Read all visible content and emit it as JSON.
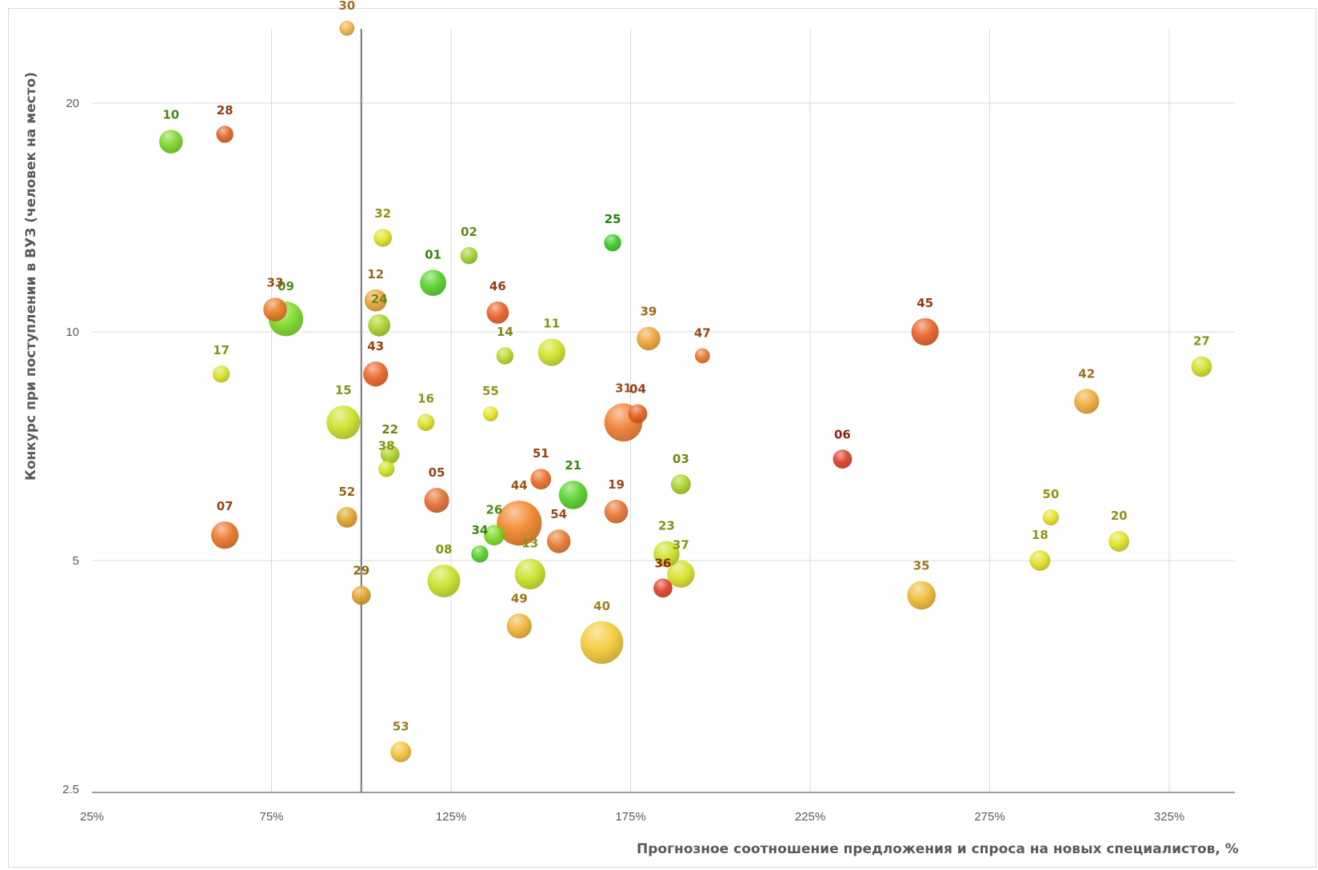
{
  "chart_data": {
    "type": "scatter",
    "xlabel": "Прогнозное соотношение предложения и спроса на новых специалистов, %",
    "ylabel": "Конкурс при поступлении в ВУЗ (человек на место)",
    "xlim": [
      25,
      350
    ],
    "ylim": [
      2.5,
      26
    ],
    "y_scale": "log",
    "grid": true,
    "x_ticks": [
      "25%",
      "75%",
      "125%",
      "175%",
      "225%",
      "275%",
      "325%"
    ],
    "x_tick_values": [
      25,
      75,
      125,
      175,
      225,
      275,
      325
    ],
    "y_ticks": [
      "2.5",
      "5",
      "10",
      "20"
    ],
    "y_tick_values": [
      2.5,
      5,
      10,
      20
    ],
    "reference_line_x": 100,
    "points": [
      {
        "label": "01",
        "x": 120,
        "y": 11.6,
        "size": 1.0,
        "color": "#4fd020"
      },
      {
        "label": "02",
        "x": 130,
        "y": 12.6,
        "size": 0.4,
        "color": "#9cd020"
      },
      {
        "label": "03",
        "x": 189,
        "y": 6.3,
        "size": 0.55,
        "color": "#a8d020"
      },
      {
        "label": "04",
        "x": 177,
        "y": 7.8,
        "size": 0.5,
        "color": "#e06020"
      },
      {
        "label": "05",
        "x": 121,
        "y": 6.0,
        "size": 0.9,
        "color": "#e36a2a"
      },
      {
        "label": "06",
        "x": 234,
        "y": 6.8,
        "size": 0.5,
        "color": "#d83a20"
      },
      {
        "label": "07",
        "x": 62,
        "y": 5.4,
        "size": 1.1,
        "color": "#ea7020"
      },
      {
        "label": "08",
        "x": 123,
        "y": 4.7,
        "size": 1.6,
        "color": "#c8e020"
      },
      {
        "label": "09",
        "x": 79,
        "y": 10.4,
        "size": 1.8,
        "color": "#7ad820"
      },
      {
        "label": "10",
        "x": 47,
        "y": 17.8,
        "size": 0.8,
        "color": "#74d420"
      },
      {
        "label": "11",
        "x": 153,
        "y": 9.4,
        "size": 1.1,
        "color": "#d0e020"
      },
      {
        "label": "12",
        "x": 104,
        "y": 11.0,
        "size": 0.7,
        "color": "#e8a030"
      },
      {
        "label": "13",
        "x": 147,
        "y": 4.8,
        "size": 1.4,
        "color": "#c8e020"
      },
      {
        "label": "14",
        "x": 140,
        "y": 9.3,
        "size": 0.4,
        "color": "#b8d820"
      },
      {
        "label": "15",
        "x": 95,
        "y": 7.6,
        "size": 1.7,
        "color": "#cce020"
      },
      {
        "label": "16",
        "x": 118,
        "y": 7.6,
        "size": 0.4,
        "color": "#d8e020"
      },
      {
        "label": "17",
        "x": 61,
        "y": 8.8,
        "size": 0.4,
        "color": "#d8e020"
      },
      {
        "label": "18",
        "x": 289,
        "y": 5.0,
        "size": 0.6,
        "color": "#e0e020"
      },
      {
        "label": "19",
        "x": 171,
        "y": 5.8,
        "size": 0.8,
        "color": "#e86e2a"
      },
      {
        "label": "20",
        "x": 311,
        "y": 5.3,
        "size": 0.6,
        "color": "#e0e020"
      },
      {
        "label": "21",
        "x": 159,
        "y": 6.1,
        "size": 1.2,
        "color": "#4fd020"
      },
      {
        "label": "22",
        "x": 108,
        "y": 6.9,
        "size": 0.5,
        "color": "#a8d020"
      },
      {
        "label": "23",
        "x": 185,
        "y": 5.1,
        "size": 1.0,
        "color": "#c8e020"
      },
      {
        "label": "24",
        "x": 105,
        "y": 10.2,
        "size": 0.7,
        "color": "#a8d020"
      },
      {
        "label": "25",
        "x": 170,
        "y": 13.1,
        "size": 0.4,
        "color": "#30c820"
      },
      {
        "label": "26",
        "x": 137,
        "y": 5.4,
        "size": 0.6,
        "color": "#7ad820"
      },
      {
        "label": "27",
        "x": 334,
        "y": 9.0,
        "size": 0.6,
        "color": "#d0e020"
      },
      {
        "label": "28",
        "x": 62,
        "y": 18.2,
        "size": 0.4,
        "color": "#e06020"
      },
      {
        "label": "29",
        "x": 100,
        "y": 4.5,
        "size": 0.5,
        "color": "#e0a020"
      },
      {
        "label": "30",
        "x": 96,
        "y": 25.1,
        "size": 0.3,
        "color": "#f0b040"
      },
      {
        "label": "31",
        "x": 173,
        "y": 7.6,
        "size": 2.2,
        "color": "#ef7a2a"
      },
      {
        "label": "32",
        "x": 106,
        "y": 13.3,
        "size": 0.45,
        "color": "#e0e020"
      },
      {
        "label": "33",
        "x": 76,
        "y": 10.7,
        "size": 0.8,
        "color": "#ea7820"
      },
      {
        "label": "34",
        "x": 133,
        "y": 5.1,
        "size": 0.4,
        "color": "#4fd020"
      },
      {
        "label": "35",
        "x": 256,
        "y": 4.5,
        "size": 1.2,
        "color": "#f0b830"
      },
      {
        "label": "36",
        "x": 184,
        "y": 4.6,
        "size": 0.5,
        "color": "#e03a20"
      },
      {
        "label": "37",
        "x": 189,
        "y": 4.8,
        "size": 1.1,
        "color": "#d8e020"
      },
      {
        "label": "38",
        "x": 107,
        "y": 6.6,
        "size": 0.35,
        "color": "#d0e020"
      },
      {
        "label": "39",
        "x": 180,
        "y": 9.8,
        "size": 0.8,
        "color": "#f0a030"
      },
      {
        "label": "40",
        "x": 167,
        "y": 3.9,
        "size": 2.8,
        "color": "#f5c830"
      },
      {
        "label": "42",
        "x": 302,
        "y": 8.1,
        "size": 0.9,
        "color": "#f0a830"
      },
      {
        "label": "43",
        "x": 104,
        "y": 8.8,
        "size": 0.9,
        "color": "#e86020"
      },
      {
        "label": "44",
        "x": 144,
        "y": 5.6,
        "size": 3.1,
        "color": "#f08020"
      },
      {
        "label": "45",
        "x": 257,
        "y": 10.0,
        "size": 1.1,
        "color": "#e85a20"
      },
      {
        "label": "46",
        "x": 138,
        "y": 10.6,
        "size": 0.7,
        "color": "#e85a20"
      },
      {
        "label": "47",
        "x": 195,
        "y": 9.3,
        "size": 0.3,
        "color": "#e87020"
      },
      {
        "label": "49",
        "x": 144,
        "y": 4.1,
        "size": 0.9,
        "color": "#f0b030"
      },
      {
        "label": "50",
        "x": 292,
        "y": 5.7,
        "size": 0.35,
        "color": "#e8e020"
      },
      {
        "label": "51",
        "x": 150,
        "y": 6.4,
        "size": 0.6,
        "color": "#e86820"
      },
      {
        "label": "52",
        "x": 96,
        "y": 5.7,
        "size": 0.6,
        "color": "#e0a020"
      },
      {
        "label": "53",
        "x": 111,
        "y": 2.8,
        "size": 0.6,
        "color": "#f0c030"
      },
      {
        "label": "54",
        "x": 155,
        "y": 5.3,
        "size": 0.8,
        "color": "#e87428"
      },
      {
        "label": "55",
        "x": 136,
        "y": 7.8,
        "size": 0.3,
        "color": "#e8e020"
      }
    ]
  }
}
